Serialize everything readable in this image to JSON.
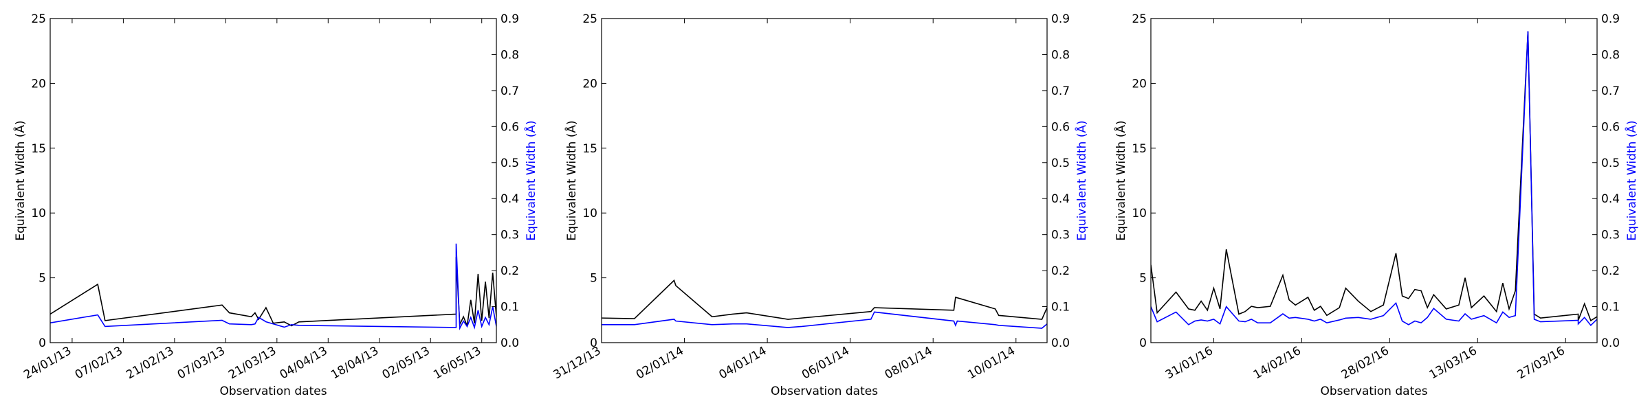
{
  "chart_data": [
    {
      "type": "line",
      "title": "",
      "xlabel": "Observation dates",
      "ylabel_left": "Equivalent Width (Å)",
      "ylabel_right": "Equivalent Width (Å)",
      "ylim_left": [
        0,
        25
      ],
      "ylim_right": [
        0,
        0.9
      ],
      "yticks_left": [
        "0",
        "5",
        "10",
        "15",
        "20",
        "25"
      ],
      "yticks_right": [
        "0.0",
        "0.1",
        "0.2",
        "0.3",
        "0.4",
        "0.5",
        "0.6",
        "0.7",
        "0.8",
        "0.9"
      ],
      "xlim": [
        "2013-01-18",
        "2013-05-20"
      ],
      "xticks": [
        {
          "date": "2013-01-24",
          "label": "24/01/13"
        },
        {
          "date": "2013-02-07",
          "label": "07/02/13"
        },
        {
          "date": "2013-02-21",
          "label": "21/02/13"
        },
        {
          "date": "2013-03-07",
          "label": "07/03/13"
        },
        {
          "date": "2013-03-21",
          "label": "21/03/13"
        },
        {
          "date": "2013-04-04",
          "label": "04/04/13"
        },
        {
          "date": "2013-04-18",
          "label": "18/04/13"
        },
        {
          "date": "2013-05-02",
          "label": "02/05/13"
        },
        {
          "date": "2013-05-16",
          "label": "16/05/13"
        }
      ],
      "grid": false,
      "series": [
        {
          "axis": "left",
          "color": "#000000",
          "points": [
            [
              "2013-01-18",
              2.2
            ],
            [
              "2013-01-31",
              4.5
            ],
            [
              "2013-02-02",
              1.7
            ],
            [
              "2013-03-06",
              2.9
            ],
            [
              "2013-03-08",
              2.3
            ],
            [
              "2013-03-14",
              2.0
            ],
            [
              "2013-03-15",
              2.3
            ],
            [
              "2013-03-16",
              1.8
            ],
            [
              "2013-03-18",
              2.7
            ],
            [
              "2013-03-20",
              1.5
            ],
            [
              "2013-03-23",
              1.6
            ],
            [
              "2013-03-25",
              1.3
            ],
            [
              "2013-03-27",
              1.6
            ],
            [
              "2013-05-09",
              2.2
            ],
            [
              "2013-05-09",
              6.6
            ],
            [
              "2013-05-10",
              1.4
            ],
            [
              "2013-05-11",
              2.0
            ],
            [
              "2013-05-12",
              1.3
            ],
            [
              "2013-05-13",
              3.3
            ],
            [
              "2013-05-14",
              1.5
            ],
            [
              "2013-05-15",
              5.3
            ],
            [
              "2013-05-16",
              1.7
            ],
            [
              "2013-05-17",
              4.7
            ],
            [
              "2013-05-18",
              1.9
            ],
            [
              "2013-05-19",
              5.4
            ],
            [
              "2013-05-20",
              2.0
            ]
          ]
        },
        {
          "axis": "right",
          "color": "#0000ff",
          "points": [
            [
              "2013-01-18",
              0.055
            ],
            [
              "2013-01-31",
              0.077
            ],
            [
              "2013-02-02",
              0.045
            ],
            [
              "2013-03-06",
              0.062
            ],
            [
              "2013-03-08",
              0.052
            ],
            [
              "2013-03-14",
              0.05
            ],
            [
              "2013-03-15",
              0.052
            ],
            [
              "2013-03-16",
              0.07
            ],
            [
              "2013-03-18",
              0.058
            ],
            [
              "2013-03-20",
              0.052
            ],
            [
              "2013-03-23",
              0.043
            ],
            [
              "2013-03-25",
              0.05
            ],
            [
              "2013-03-27",
              0.048
            ],
            [
              "2013-05-09",
              0.042
            ],
            [
              "2013-05-09",
              0.275
            ],
            [
              "2013-05-10",
              0.04
            ],
            [
              "2013-05-11",
              0.06
            ],
            [
              "2013-05-12",
              0.045
            ],
            [
              "2013-05-13",
              0.07
            ],
            [
              "2013-05-14",
              0.042
            ],
            [
              "2013-05-15",
              0.09
            ],
            [
              "2013-05-16",
              0.045
            ],
            [
              "2013-05-17",
              0.07
            ],
            [
              "2013-05-18",
              0.05
            ],
            [
              "2013-05-19",
              0.1
            ],
            [
              "2013-05-20",
              0.045
            ]
          ]
        }
      ]
    },
    {
      "type": "line",
      "title": "",
      "xlabel": "Observation dates",
      "ylabel_left": "Equivalent Width (Å)",
      "ylabel_right": "Equivalent Width (Å)",
      "ylim_left": [
        0,
        25
      ],
      "ylim_right": [
        0,
        0.9
      ],
      "yticks_left": [
        "0",
        "5",
        "10",
        "15",
        "20",
        "25"
      ],
      "yticks_right": [
        "0.0",
        "0.1",
        "0.2",
        "0.3",
        "0.4",
        "0.5",
        "0.6",
        "0.7",
        "0.8",
        "0.9"
      ],
      "xlim": [
        "2013-12-31T00:00",
        "2014-01-10T18:00"
      ],
      "xticks": [
        {
          "date": "2013-12-31T00:00",
          "label": "31/12/13"
        },
        {
          "date": "2014-01-02T00:00",
          "label": "02/01/14"
        },
        {
          "date": "2014-01-04T00:00",
          "label": "04/01/14"
        },
        {
          "date": "2014-01-06T00:00",
          "label": "06/01/14"
        },
        {
          "date": "2014-01-08T00:00",
          "label": "08/01/14"
        },
        {
          "date": "2014-01-10T00:00",
          "label": "10/01/14"
        }
      ],
      "grid": false,
      "series": [
        {
          "axis": "left",
          "color": "#000000",
          "points": [
            [
              "2013-12-31T00:00",
              1.9
            ],
            [
              "2013-12-31T19:00",
              1.85
            ],
            [
              "2014-01-01T18:00",
              4.8
            ],
            [
              "2014-01-01T19:00",
              4.4
            ],
            [
              "2014-01-02T16:00",
              2.0
            ],
            [
              "2014-01-03T04:00",
              2.2
            ],
            [
              "2014-01-03T12:00",
              2.3
            ],
            [
              "2014-01-04T12:00",
              1.8
            ],
            [
              "2014-01-04T20:00",
              1.9
            ],
            [
              "2014-01-06T12:00",
              2.4
            ],
            [
              "2014-01-06T14:00",
              2.7
            ],
            [
              "2014-01-08T12:00",
              2.5
            ],
            [
              "2014-01-08T13:00",
              3.5
            ],
            [
              "2014-01-09T12:00",
              2.6
            ],
            [
              "2014-01-09T14:00",
              2.1
            ],
            [
              "2014-01-10T15:00",
              1.8
            ],
            [
              "2014-01-10T18:00",
              2.7
            ]
          ]
        },
        {
          "axis": "right",
          "color": "#0000ff",
          "points": [
            [
              "2013-12-31T00:00",
              0.05
            ],
            [
              "2013-12-31T19:00",
              0.05
            ],
            [
              "2014-01-01T18:00",
              0.065
            ],
            [
              "2014-01-01T19:00",
              0.06
            ],
            [
              "2014-01-02T16:00",
              0.05
            ],
            [
              "2014-01-03T04:00",
              0.052
            ],
            [
              "2014-01-03T12:00",
              0.052
            ],
            [
              "2014-01-04T12:00",
              0.042
            ],
            [
              "2014-01-04T20:00",
              0.045
            ],
            [
              "2014-01-06T12:00",
              0.065
            ],
            [
              "2014-01-06T14:00",
              0.085
            ],
            [
              "2014-01-08T12:00",
              0.06
            ],
            [
              "2014-01-08T13:00",
              0.048
            ],
            [
              "2014-01-08T14:00",
              0.06
            ],
            [
              "2014-01-09T12:00",
              0.05
            ],
            [
              "2014-01-09T14:00",
              0.048
            ],
            [
              "2014-01-10T15:00",
              0.04
            ],
            [
              "2014-01-10T18:00",
              0.052
            ]
          ]
        }
      ]
    },
    {
      "type": "line",
      "title": "",
      "xlabel": "Observation dates",
      "ylabel_left": "Equivalent Width (Å)",
      "ylabel_right": "Equivalent Width (Å)",
      "ylim_left": [
        0,
        25
      ],
      "ylim_right": [
        0,
        0.9
      ],
      "yticks_left": [
        "0",
        "5",
        "10",
        "15",
        "20",
        "25"
      ],
      "yticks_right": [
        "0.0",
        "0.1",
        "0.2",
        "0.3",
        "0.4",
        "0.5",
        "0.6",
        "0.7",
        "0.8",
        "0.9"
      ],
      "xlim": [
        "2016-01-21",
        "2016-04-01"
      ],
      "xticks": [
        {
          "date": "2016-01-31",
          "label": "31/01/16"
        },
        {
          "date": "2016-02-14",
          "label": "14/02/16"
        },
        {
          "date": "2016-02-28",
          "label": "28/02/16"
        },
        {
          "date": "2016-03-13",
          "label": "13/03/16"
        },
        {
          "date": "2016-03-27",
          "label": "27/03/16"
        }
      ],
      "grid": false,
      "series": [
        {
          "axis": "left",
          "color": "#000000",
          "points": [
            [
              "2016-01-21",
              6.0
            ],
            [
              "2016-01-22",
              2.3
            ],
            [
              "2016-01-25",
              3.9
            ],
            [
              "2016-01-27",
              2.6
            ],
            [
              "2016-01-28",
              2.5
            ],
            [
              "2016-01-29",
              3.2
            ],
            [
              "2016-01-30",
              2.5
            ],
            [
              "2016-01-31",
              4.2
            ],
            [
              "2016-02-01",
              2.6
            ],
            [
              "2016-02-02",
              7.2
            ],
            [
              "2016-02-04",
              2.2
            ],
            [
              "2016-02-05",
              2.4
            ],
            [
              "2016-02-06",
              2.8
            ],
            [
              "2016-02-07",
              2.7
            ],
            [
              "2016-02-09",
              2.8
            ],
            [
              "2016-02-11",
              5.2
            ],
            [
              "2016-02-12",
              3.3
            ],
            [
              "2016-02-13",
              2.9
            ],
            [
              "2016-02-15",
              3.5
            ],
            [
              "2016-02-16",
              2.5
            ],
            [
              "2016-02-17",
              2.8
            ],
            [
              "2016-02-18",
              2.1
            ],
            [
              "2016-02-20",
              2.7
            ],
            [
              "2016-02-21",
              4.2
            ],
            [
              "2016-02-23",
              3.2
            ],
            [
              "2016-02-25",
              2.4
            ],
            [
              "2016-02-27",
              2.9
            ],
            [
              "2016-02-29",
              6.9
            ],
            [
              "2016-03-01",
              3.6
            ],
            [
              "2016-03-02",
              3.4
            ],
            [
              "2016-03-03",
              4.1
            ],
            [
              "2016-03-04",
              4.0
            ],
            [
              "2016-03-05",
              2.7
            ],
            [
              "2016-03-06",
              3.7
            ],
            [
              "2016-03-08",
              2.6
            ],
            [
              "2016-03-10",
              2.9
            ],
            [
              "2016-03-11",
              5.0
            ],
            [
              "2016-03-12",
              2.7
            ],
            [
              "2016-03-14",
              3.6
            ],
            [
              "2016-03-16",
              2.4
            ],
            [
              "2016-03-17",
              4.6
            ],
            [
              "2016-03-18",
              2.6
            ],
            [
              "2016-03-19",
              4.0
            ],
            [
              "2016-03-21",
              24.0
            ],
            [
              "2016-03-22",
              2.2
            ],
            [
              "2016-03-23",
              1.9
            ],
            [
              "2016-03-29",
              2.2
            ],
            [
              "2016-03-29",
              1.7
            ],
            [
              "2016-03-30",
              3.0
            ],
            [
              "2016-03-31",
              1.7
            ],
            [
              "2016-04-01",
              2.0
            ]
          ]
        },
        {
          "axis": "right",
          "color": "#0000ff",
          "points": [
            [
              "2016-01-21",
              0.1
            ],
            [
              "2016-01-22",
              0.058
            ],
            [
              "2016-01-25",
              0.085
            ],
            [
              "2016-01-27",
              0.05
            ],
            [
              "2016-01-28",
              0.06
            ],
            [
              "2016-01-29",
              0.063
            ],
            [
              "2016-01-30",
              0.06
            ],
            [
              "2016-01-31",
              0.065
            ],
            [
              "2016-02-01",
              0.052
            ],
            [
              "2016-02-02",
              0.1
            ],
            [
              "2016-02-04",
              0.06
            ],
            [
              "2016-02-05",
              0.058
            ],
            [
              "2016-02-06",
              0.065
            ],
            [
              "2016-02-07",
              0.055
            ],
            [
              "2016-02-09",
              0.055
            ],
            [
              "2016-02-11",
              0.08
            ],
            [
              "2016-02-12",
              0.068
            ],
            [
              "2016-02-13",
              0.07
            ],
            [
              "2016-02-15",
              0.065
            ],
            [
              "2016-02-16",
              0.06
            ],
            [
              "2016-02-17",
              0.065
            ],
            [
              "2016-02-18",
              0.055
            ],
            [
              "2016-02-20",
              0.063
            ],
            [
              "2016-02-21",
              0.068
            ],
            [
              "2016-02-23",
              0.07
            ],
            [
              "2016-02-25",
              0.065
            ],
            [
              "2016-02-27",
              0.075
            ],
            [
              "2016-02-29",
              0.11
            ],
            [
              "2016-03-01",
              0.06
            ],
            [
              "2016-03-02",
              0.05
            ],
            [
              "2016-03-03",
              0.06
            ],
            [
              "2016-03-04",
              0.055
            ],
            [
              "2016-03-05",
              0.07
            ],
            [
              "2016-03-06",
              0.095
            ],
            [
              "2016-03-08",
              0.065
            ],
            [
              "2016-03-10",
              0.06
            ],
            [
              "2016-03-11",
              0.08
            ],
            [
              "2016-03-12",
              0.065
            ],
            [
              "2016-03-14",
              0.075
            ],
            [
              "2016-03-16",
              0.055
            ],
            [
              "2016-03-17",
              0.085
            ],
            [
              "2016-03-18",
              0.07
            ],
            [
              "2016-03-19",
              0.075
            ],
            [
              "2016-03-21",
              0.865
            ],
            [
              "2016-03-22",
              0.065
            ],
            [
              "2016-03-23",
              0.058
            ],
            [
              "2016-03-29",
              0.062
            ],
            [
              "2016-03-29",
              0.052
            ],
            [
              "2016-03-30",
              0.07
            ],
            [
              "2016-03-31",
              0.048
            ],
            [
              "2016-04-01",
              0.065
            ]
          ]
        }
      ]
    }
  ]
}
